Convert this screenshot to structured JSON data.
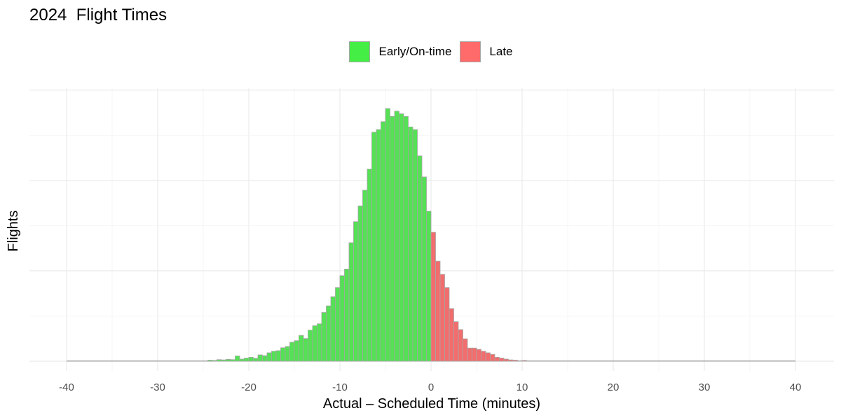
{
  "chart_data": {
    "type": "bar",
    "title": "2024  Flight Times",
    "xlabel": "Actual – Scheduled Time (minutes)",
    "ylabel": "Flights",
    "xlim": [
      -44,
      44
    ],
    "ylim": [
      0,
      100
    ],
    "x_ticks": [
      -40,
      -30,
      -20,
      -10,
      0,
      10,
      20,
      30,
      40
    ],
    "x_tick_labels": [
      "-40",
      "-30",
      "-20",
      "-10",
      "0",
      "10",
      "20",
      "30",
      "40"
    ],
    "y_tick_labels_shown": false,
    "grid": true,
    "legend_position": "top",
    "bin_width": 0.5,
    "legend": [
      {
        "name": "Early/On-time",
        "color": "#44ee44"
      },
      {
        "name": "Late",
        "color": "#ff6b6b"
      }
    ],
    "bar_colors": {
      "early": "#55e055",
      "late": "#f26d6d",
      "outline": "#a6a6a6"
    },
    "bins_start": -24.5,
    "counts": [
      0.4,
      0.3,
      0.6,
      0.5,
      0.7,
      0.6,
      2.0,
      0.8,
      1.2,
      1.5,
      1.1,
      2.4,
      2.1,
      3.2,
      3.8,
      4.0,
      5.1,
      5.6,
      7.2,
      7.8,
      9.8,
      8.6,
      11.8,
      13.5,
      14.2,
      18.5,
      21.0,
      24.5,
      28.0,
      32.5,
      35.0,
      45.0,
      53.0,
      59.0,
      65.0,
      73.0,
      87.0,
      88.0,
      91.0,
      96.0,
      93.0,
      95.0,
      94.0,
      93.0,
      89.0,
      88.0,
      78.0,
      70.0,
      57.0,
      49.0,
      38.0,
      33.0,
      28.0,
      20.0,
      15.0,
      12.0,
      8.5,
      5.0,
      5.0,
      4.5,
      3.8,
      3.2,
      2.6,
      1.5,
      1.2,
      0.8,
      0.5,
      0.4,
      0.2,
      0.3
    ]
  }
}
